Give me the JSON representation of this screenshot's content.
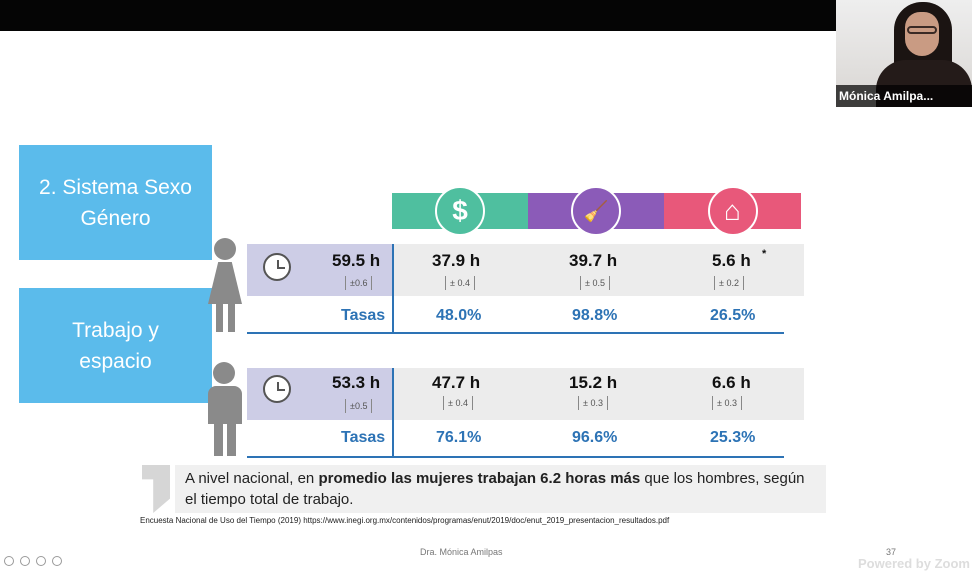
{
  "webcam": {
    "name": "Mónica Amilpa..."
  },
  "slide": {
    "title_box": {
      "line1": "2. Sistema Sexo",
      "line2": "Género"
    },
    "subtitle_box": {
      "line1": "Trabajo y",
      "line2": "espacio"
    },
    "categories": [
      {
        "icon": "dollar-icon",
        "color": "#4fbf9f",
        "symbol": "$"
      },
      {
        "icon": "broom-icon",
        "color": "#8b5bb8",
        "symbol": "🧹"
      },
      {
        "icon": "house-care-icon",
        "color": "#e8587a",
        "symbol": "⌂"
      }
    ],
    "women": {
      "total": "59.5 h",
      "total_ci": "±0.6",
      "values": [
        {
          "value": "37.9 h",
          "ci": "± 0.4",
          "rate": "48.0%"
        },
        {
          "value": "39.7 h",
          "ci": "± 0.5",
          "rate": "98.8%"
        },
        {
          "value": "5.6 h",
          "ci": "± 0.2",
          "rate": "26.5%",
          "mark": "*"
        }
      ],
      "rates_label": "Tasas"
    },
    "men": {
      "total": "53.3 h",
      "total_ci": "±0.5",
      "values": [
        {
          "value": "47.7 h",
          "ci": "± 0.4",
          "rate": "76.1%"
        },
        {
          "value": "15.2 h",
          "ci": "± 0.3",
          "rate": "96.6%"
        },
        {
          "value": "6.6 h",
          "ci": "± 0.3",
          "rate": "25.3%"
        }
      ],
      "rates_label": "Tasas"
    },
    "summary": {
      "pre": "A nivel nacional, en ",
      "bold": "promedio las mujeres trabajan 6.2 horas más",
      "post": " que los hombres, según el tiempo total de trabajo."
    },
    "source": "Encuesta Nacional de Uso del Tiempo (2019) https://www.inegi.org.mx/contenidos/programas/enut/2019/doc/enut_2019_presentacion_resultados.pdf",
    "footer": "Dra.  Mónica Amilpas",
    "page_number": "37"
  },
  "zoom": {
    "brand": "Powered by Zoom"
  }
}
